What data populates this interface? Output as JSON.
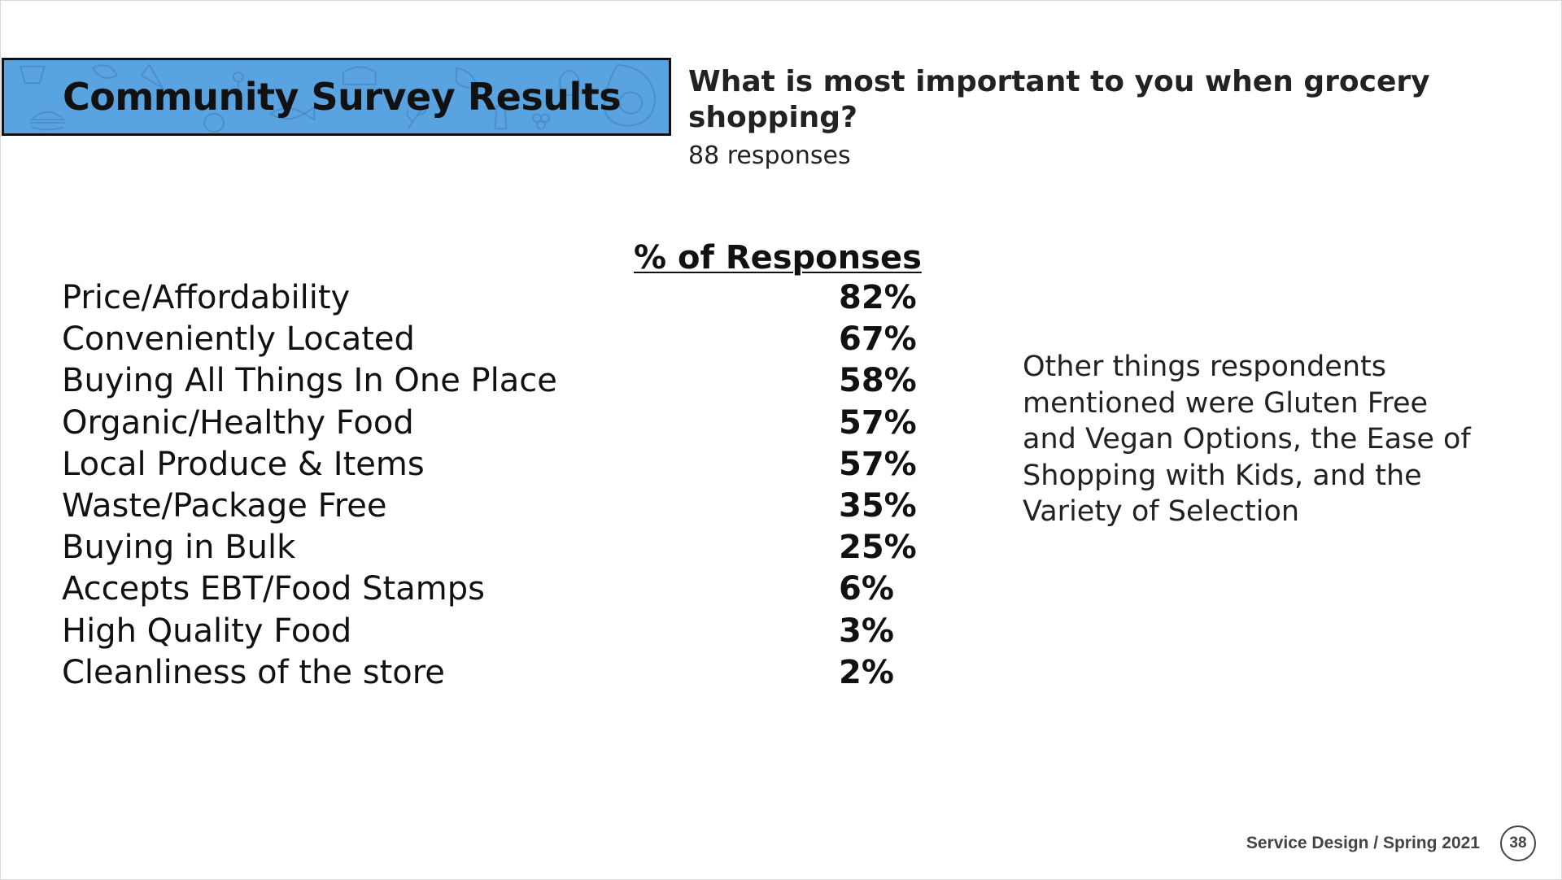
{
  "slide": {
    "title": "Community Survey Results",
    "question": "What is most important to you when grocery shopping?",
    "responses": "88 responses",
    "column_header": "% of Responses",
    "items": [
      {
        "label": "Price/Affordability",
        "value": "82%"
      },
      {
        "label": "Conveniently Located",
        "value": "67%"
      },
      {
        "label": "Buying All Things In One Place",
        "value": "58%"
      },
      {
        "label": "Organic/Healthy Food",
        "value": "57%"
      },
      {
        "label": "Local Produce & Items",
        "value": "57%"
      },
      {
        "label": "Waste/Package Free",
        "value": "35%"
      },
      {
        "label": "Buying in Bulk",
        "value": "25%"
      },
      {
        "label": "Accepts EBT/Food Stamps",
        "value": "6%"
      },
      {
        "label": "High Quality Food",
        "value": "3%"
      },
      {
        "label": "Cleanliness of the store",
        "value": "2%"
      }
    ],
    "note": "Other things respondents mentioned were Gluten Free and Vegan Options, the Ease of Shopping with Kids, and the Variety of Selection",
    "footer": "Service Design / Spring 2021",
    "page_number": "38"
  },
  "colors": {
    "title_box": "#59a3e0",
    "text": "#111111",
    "footer": "#444444"
  },
  "icons": [
    "food-pattern-icon"
  ]
}
